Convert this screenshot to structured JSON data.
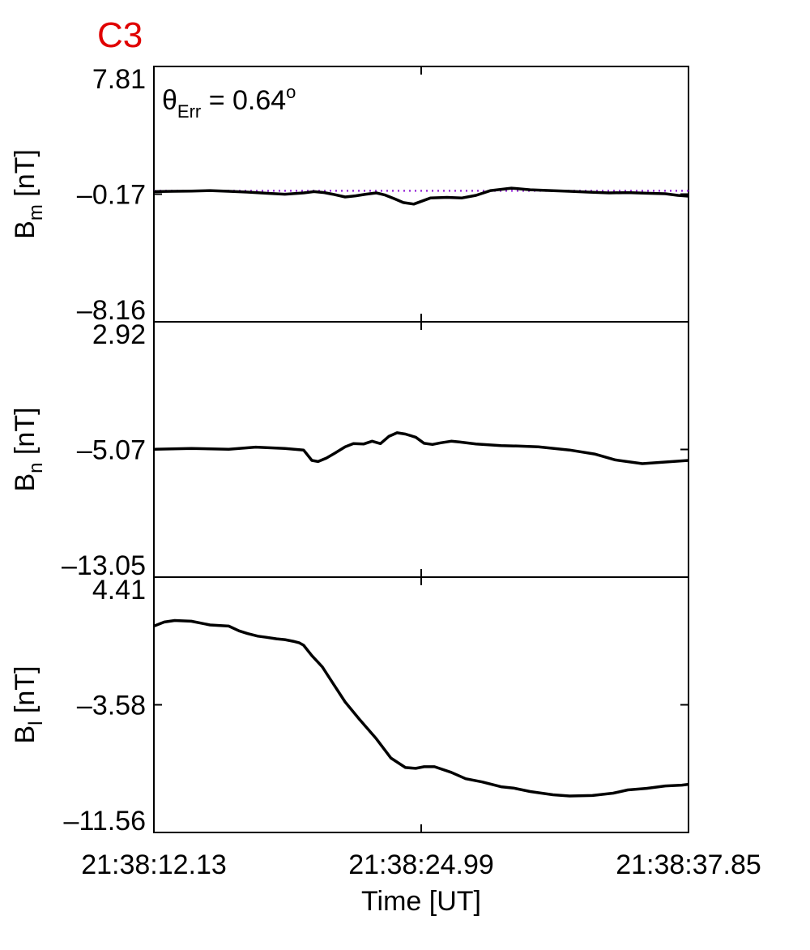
{
  "figure": {
    "title": "C3",
    "title_color": "#e00000",
    "xlabel": "Time [UT]",
    "x_ticks": [
      "21:38:12.13",
      "21:38:24.99",
      "21:38:37.85"
    ],
    "annotation": {
      "symbol": "θ",
      "sub": "Err",
      "value": " =  0.64",
      "sup": "o"
    }
  },
  "chart_data": [
    {
      "type": "line",
      "ylabel": {
        "main": "B",
        "sub": "m",
        "unit": " [nT]"
      },
      "ylim": [
        -8.16,
        7.81
      ],
      "y_ticks": [
        "7.81",
        "–0.17",
        "–8.16"
      ],
      "reference_line": {
        "y": -0.17,
        "style": "dotted",
        "color": "#9b30d9"
      },
      "line_color": "#000000",
      "x": [
        0.0,
        0.9,
        1.8,
        2.7,
        3.6,
        4.5,
        5.4,
        6.3,
        7.2,
        7.7,
        8.2,
        8.6,
        9.2,
        9.7,
        10.2,
        10.7,
        11.1,
        11.6,
        12.0,
        12.5,
        13.3,
        14.1,
        14.8,
        15.5,
        16.2,
        17.2,
        18.1,
        19.1,
        20.0,
        20.9,
        21.9,
        22.8,
        23.7,
        24.6,
        25.2,
        25.72
      ],
      "values": [
        -0.02,
        0.0,
        0.02,
        0.05,
        0.0,
        -0.05,
        -0.12,
        -0.18,
        -0.1,
        -0.02,
        -0.08,
        -0.18,
        -0.35,
        -0.28,
        -0.18,
        -0.1,
        -0.22,
        -0.48,
        -0.7,
        -0.8,
        -0.42,
        -0.38,
        -0.42,
        -0.25,
        0.05,
        0.2,
        0.1,
        0.05,
        0.0,
        -0.05,
        -0.1,
        -0.08,
        -0.12,
        -0.15,
        -0.25,
        -0.3
      ]
    },
    {
      "type": "line",
      "ylabel": {
        "main": "B",
        "sub": "n",
        "unit": " [nT]"
      },
      "ylim": [
        -13.05,
        2.92
      ],
      "y_ticks": [
        "2.92",
        "–5.07",
        "–13.05"
      ],
      "line_color": "#000000",
      "x": [
        0.0,
        1.8,
        3.6,
        4.9,
        6.3,
        7.2,
        7.6,
        7.9,
        8.3,
        8.7,
        9.2,
        9.6,
        10.1,
        10.5,
        10.9,
        11.3,
        11.7,
        12.1,
        12.6,
        13.0,
        13.4,
        13.8,
        14.3,
        14.7,
        15.5,
        16.7,
        17.5,
        18.5,
        20.0,
        21.2,
        22.2,
        23.5,
        24.6,
        25.72
      ],
      "values": [
        -5.05,
        -5.0,
        -5.05,
        -4.92,
        -5.0,
        -5.1,
        -5.75,
        -5.82,
        -5.6,
        -5.3,
        -4.9,
        -4.7,
        -4.72,
        -4.55,
        -4.7,
        -4.25,
        -4.02,
        -4.1,
        -4.3,
        -4.68,
        -4.75,
        -4.65,
        -4.55,
        -4.6,
        -4.72,
        -4.82,
        -4.85,
        -4.9,
        -5.1,
        -5.35,
        -5.72,
        -5.95,
        -5.85,
        -5.75
      ]
    },
    {
      "type": "line",
      "ylabel": {
        "main": "B",
        "sub": "l",
        "unit": " [nT]"
      },
      "ylim": [
        -11.56,
        4.41
      ],
      "y_ticks": [
        "4.41",
        "–3.58",
        "–11.56"
      ],
      "line_color": "#000000",
      "x": [
        0.0,
        0.5,
        1.0,
        1.8,
        2.7,
        3.6,
        4.1,
        4.5,
        5.0,
        5.4,
        5.9,
        6.3,
        6.7,
        7.0,
        7.2,
        7.6,
        8.1,
        8.6,
        9.2,
        9.9,
        10.7,
        11.4,
        12.1,
        12.6,
        13.0,
        13.5,
        14.3,
        15.0,
        15.8,
        16.7,
        17.3,
        18.1,
        19.2,
        20.0,
        21.1,
        22.1,
        22.8,
        23.7,
        24.6,
        25.4,
        25.72
      ],
      "values": [
        1.35,
        1.6,
        1.7,
        1.65,
        1.42,
        1.35,
        1.05,
        0.88,
        0.72,
        0.65,
        0.55,
        0.5,
        0.4,
        0.3,
        0.15,
        -0.5,
        -1.2,
        -2.2,
        -3.4,
        -4.5,
        -5.7,
        -6.9,
        -7.5,
        -7.55,
        -7.45,
        -7.45,
        -7.8,
        -8.2,
        -8.4,
        -8.7,
        -8.78,
        -9.0,
        -9.2,
        -9.28,
        -9.25,
        -9.1,
        -8.9,
        -8.8,
        -8.65,
        -8.6,
        -8.55
      ]
    }
  ]
}
